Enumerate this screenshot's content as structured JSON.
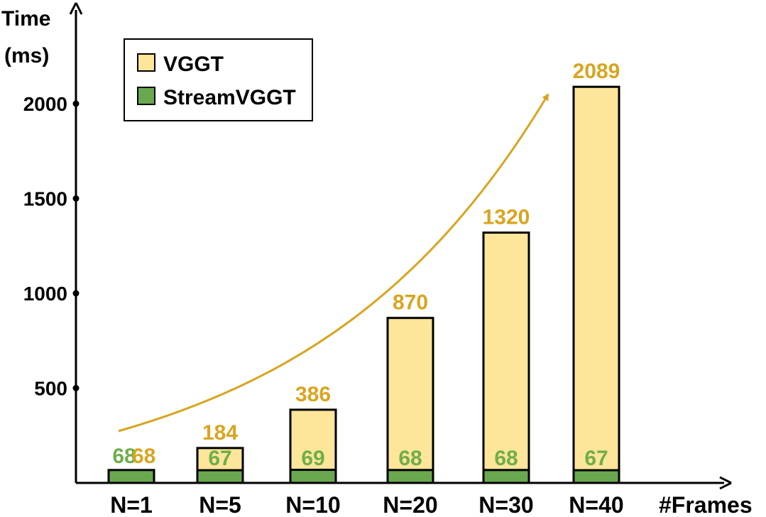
{
  "chart_data": {
    "type": "bar",
    "y_label_line1": "Time",
    "y_label_line2": "(ms)",
    "xlabel": "#Frames",
    "categories": [
      "N=1",
      "N=5",
      "N=10",
      "N=20",
      "N=30",
      "N=40"
    ],
    "series": [
      {
        "name": "VGGT",
        "values": [
          68,
          184,
          386,
          870,
          1320,
          2089
        ],
        "labels": [
          "68",
          "184",
          "386",
          "870",
          "1320",
          "2089"
        ]
      },
      {
        "name": "StreamVGGT",
        "values": [
          68,
          67,
          69,
          68,
          68,
          67
        ],
        "labels": [
          "68",
          "67",
          "69",
          "68",
          "68",
          "67"
        ]
      }
    ],
    "yticks": [
      "500",
      "1000",
      "1500",
      "2000"
    ],
    "ylim": [
      0,
      2350
    ],
    "legend_position": "top-left",
    "trend_arrow": true,
    "colors": {
      "vggt_fill": "#fde59a",
      "vggt_text": "#d9a520",
      "stream_fill": "#6aa84f",
      "stream_text": "#6fae4a",
      "arrow": "#d9a520"
    }
  }
}
